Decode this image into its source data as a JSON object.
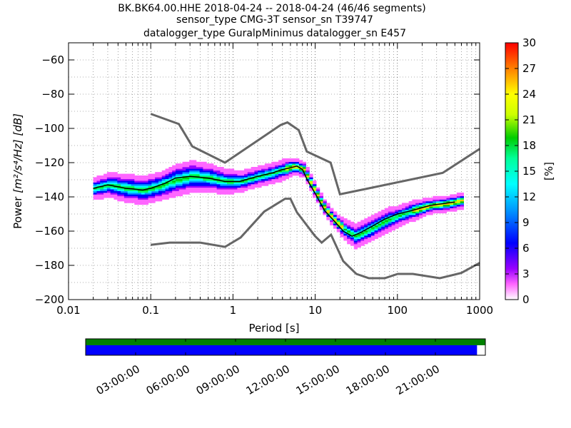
{
  "chart_data": {
    "type": "heatmap",
    "title_lines": [
      "BK.BK64.00.HHE   2018-04-24 -- 2018-04-24  (46/46 segments)",
      "sensor_type CMG-3T sensor_sn T39747",
      "datalogger_type GuralpMinimus datalogger_sn E457"
    ],
    "xlabel": "Period [s]",
    "ylabel": "Power",
    "ylabel_units": "[m²/s⁴/Hz] [dB]",
    "x_scale": "log",
    "xlim": [
      0.01,
      1000
    ],
    "ylim": [
      -200,
      -50
    ],
    "x_ticks": [
      0.01,
      0.1,
      1,
      10,
      100,
      1000
    ],
    "x_tick_labels": [
      "0.01",
      "0.1",
      "1",
      "10",
      "100",
      "1000"
    ],
    "y_ticks": [
      -200,
      -180,
      -160,
      -140,
      -120,
      -100,
      -80,
      -60
    ],
    "y_tick_labels": [
      "−200",
      "−180",
      "−160",
      "−140",
      "−120",
      "−100",
      "−80",
      "−60"
    ],
    "grid": true,
    "colorbar": {
      "label": "[%]",
      "range": [
        0,
        30
      ],
      "ticks": [
        0,
        3,
        6,
        9,
        12,
        15,
        18,
        21,
        24,
        27,
        30
      ],
      "tick_labels": [
        "0",
        "3",
        "6",
        "9",
        "12",
        "15",
        "18",
        "21",
        "24",
        "27",
        "30"
      ],
      "colormap": "pqlx"
    },
    "nlnm_series": [
      [
        0.1,
        -168
      ],
      [
        0.17,
        -166.7
      ],
      [
        0.4,
        -166.7
      ],
      [
        0.8,
        -169.2
      ],
      [
        1.24,
        -163.7
      ],
      [
        2.4,
        -148.6
      ],
      [
        4.3,
        -141.1
      ],
      [
        5,
        -141.1
      ],
      [
        6,
        -149
      ],
      [
        10,
        -163
      ],
      [
        12,
        -166.7
      ],
      [
        15.6,
        -162.1
      ],
      [
        21.9,
        -177.5
      ],
      [
        31.6,
        -185
      ],
      [
        45,
        -187.5
      ],
      [
        70,
        -187.5
      ],
      [
        101,
        -185
      ],
      [
        154,
        -185
      ],
      [
        328,
        -187.5
      ],
      [
        600,
        -184.4
      ],
      [
        1000,
        -178.6
      ]
    ],
    "nhnm_series": [
      [
        0.1,
        -91.5
      ],
      [
        0.22,
        -97.4
      ],
      [
        0.32,
        -110.5
      ],
      [
        0.8,
        -120
      ],
      [
        3.8,
        -98
      ],
      [
        4.6,
        -96.5
      ],
      [
        6.3,
        -101
      ],
      [
        7.9,
        -113.5
      ],
      [
        15.4,
        -120
      ],
      [
        20,
        -138.5
      ],
      [
        354.8,
        -126
      ],
      [
        1000,
        -112
      ]
    ],
    "mode_series": [
      [
        0.02,
        -135
      ],
      [
        0.03,
        -133
      ],
      [
        0.05,
        -135
      ],
      [
        0.08,
        -136
      ],
      [
        0.1,
        -135
      ],
      [
        0.15,
        -132
      ],
      [
        0.2,
        -129
      ],
      [
        0.3,
        -128
      ],
      [
        0.5,
        -129
      ],
      [
        0.8,
        -131
      ],
      [
        1.2,
        -131
      ],
      [
        2,
        -128
      ],
      [
        3,
        -126
      ],
      [
        4,
        -124
      ],
      [
        5,
        -123
      ],
      [
        6,
        -122
      ],
      [
        7,
        -124
      ],
      [
        8,
        -130
      ],
      [
        10,
        -138
      ],
      [
        13,
        -148
      ],
      [
        17,
        -154
      ],
      [
        22,
        -160
      ],
      [
        28,
        -163
      ],
      [
        35,
        -161
      ],
      [
        50,
        -157
      ],
      [
        70,
        -153
      ],
      [
        100,
        -150
      ],
      [
        150,
        -148
      ],
      [
        250,
        -145
      ],
      [
        500,
        -143
      ]
    ],
    "psd_band": [
      {
        "period": 0.02,
        "mean": -135,
        "spread": 4
      },
      {
        "period": 0.03,
        "mean": -133,
        "spread": 5
      },
      {
        "period": 0.05,
        "mean": -135,
        "spread": 6
      },
      {
        "period": 0.08,
        "mean": -136,
        "spread": 6
      },
      {
        "period": 0.12,
        "mean": -134,
        "spread": 6
      },
      {
        "period": 0.2,
        "mean": -130,
        "spread": 7
      },
      {
        "period": 0.3,
        "mean": -128,
        "spread": 7
      },
      {
        "period": 0.5,
        "mean": -129,
        "spread": 6
      },
      {
        "period": 0.8,
        "mean": -131,
        "spread": 5
      },
      {
        "period": 1.2,
        "mean": -131,
        "spread": 4
      },
      {
        "period": 2,
        "mean": -128,
        "spread": 4
      },
      {
        "period": 3,
        "mean": -126,
        "spread": 4
      },
      {
        "period": 4,
        "mean": -124,
        "spread": 4
      },
      {
        "period": 5.5,
        "mean": -122,
        "spread": 3
      },
      {
        "period": 7,
        "mean": -124,
        "spread": 3
      },
      {
        "period": 9,
        "mean": -134,
        "spread": 3
      },
      {
        "period": 12,
        "mean": -145,
        "spread": 3
      },
      {
        "period": 16,
        "mean": -153,
        "spread": 3
      },
      {
        "period": 22,
        "mean": -159,
        "spread": 4
      },
      {
        "period": 30,
        "mean": -163,
        "spread": 5
      },
      {
        "period": 45,
        "mean": -159,
        "spread": 5
      },
      {
        "period": 70,
        "mean": -154,
        "spread": 5
      },
      {
        "period": 100,
        "mean": -151,
        "spread": 4
      },
      {
        "period": 150,
        "mean": -148,
        "spread": 4
      },
      {
        "period": 250,
        "mean": -145,
        "spread": 3
      },
      {
        "period": 400,
        "mean": -144,
        "spread": 3
      },
      {
        "period": 600,
        "mean": -142,
        "spread": 3
      }
    ],
    "time_coverage": {
      "tick_labels": [
        "03:00:00",
        "06:00:00",
        "09:00:00",
        "12:00:00",
        "15:00:00",
        "18:00:00",
        "21:00:00"
      ],
      "tick_hours": [
        3,
        6,
        9,
        12,
        15,
        18,
        21
      ],
      "range_hours": [
        0,
        24
      ],
      "segments_used": [
        [
          0,
          23.5
        ]
      ],
      "data_available": [
        [
          0,
          24
        ]
      ],
      "colors": {
        "segments": "#0000ff",
        "availability": "#008000",
        "nlnm_nhnm": "#666666",
        "mode": "#000000"
      }
    }
  }
}
